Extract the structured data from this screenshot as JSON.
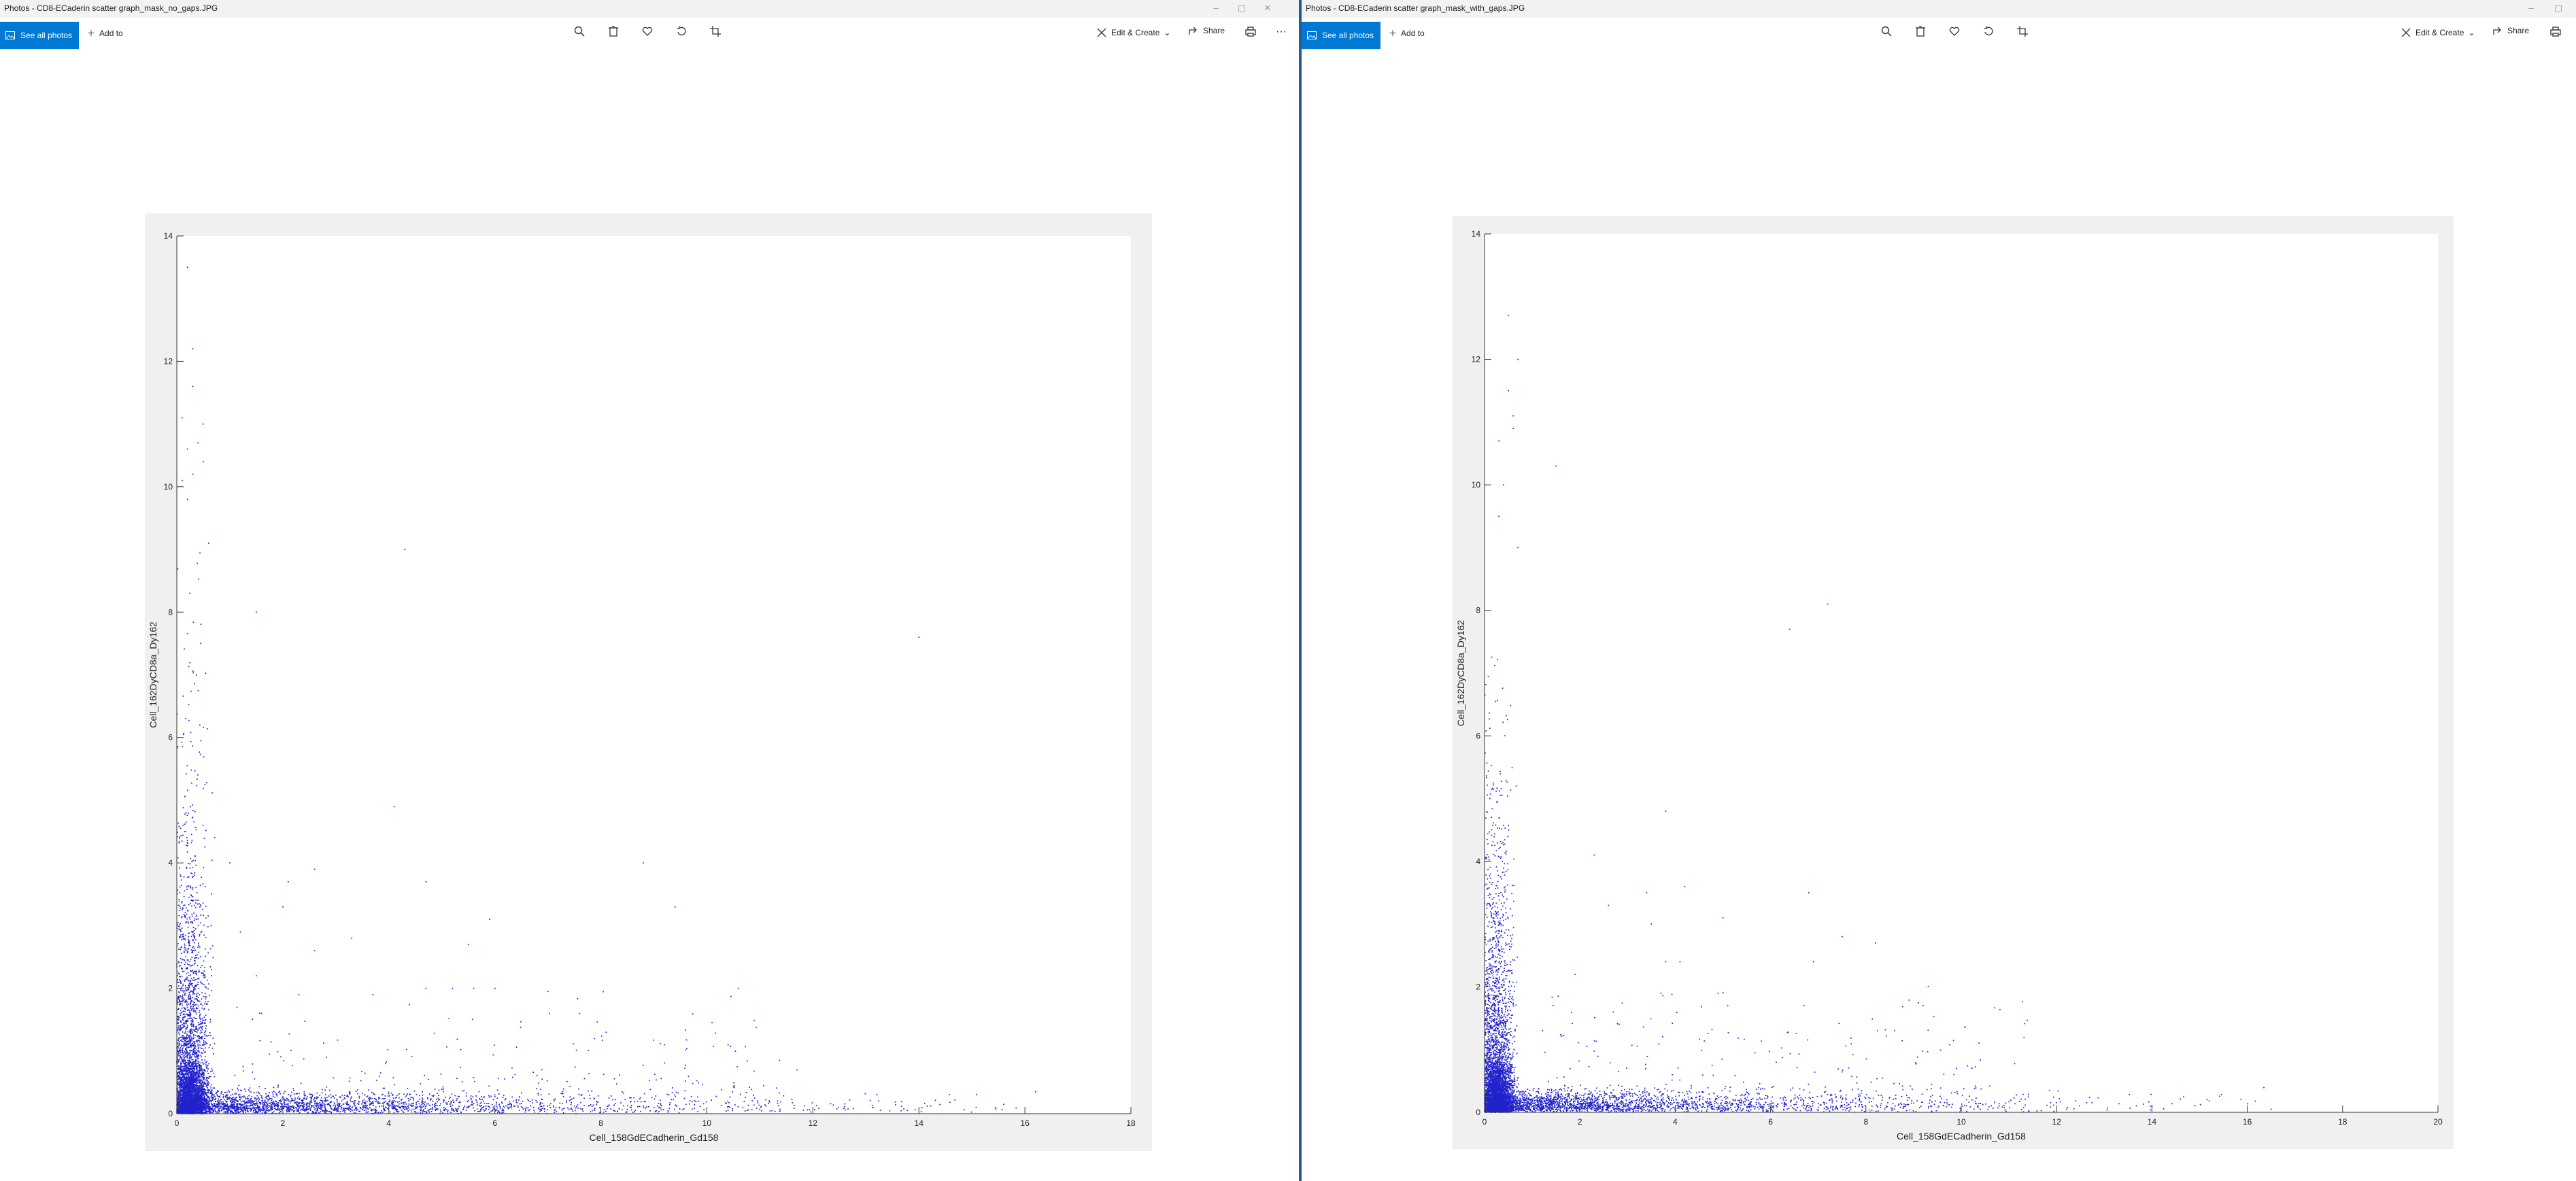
{
  "windows": [
    {
      "title": "Photos - CD8-ECaderin scatter graph_mask_no_gaps.JPG",
      "see_all_label": "See all photos",
      "add_to_label": "Add to",
      "edit_create_label": "Edit & Create",
      "share_label": "Share",
      "more_label": "···",
      "icons": [
        "zoom-icon",
        "delete-icon",
        "heart-icon",
        "rotate-icon",
        "crop-icon"
      ]
    },
    {
      "title": "Photos - CD8-ECaderin scatter graph_mask_with_gaps.JPG",
      "see_all_label": "See all photos",
      "add_to_label": "Add to",
      "edit_create_label": "Edit & Create",
      "share_label": "Share",
      "icons": [
        "zoom-icon",
        "delete-icon",
        "heart-icon",
        "rotate-icon",
        "crop-icon"
      ]
    }
  ],
  "colors": {
    "accent": "#0078d4",
    "points": "#2222cc",
    "figure_bg": "#f0f0f0"
  },
  "chart_data": [
    {
      "type": "scatter",
      "xlabel": "Cell_158GdECadherin_Gd158",
      "ylabel": "Cell_162DyCD8a_Dy162",
      "xlim": [
        0,
        18
      ],
      "ylim": [
        0,
        14
      ],
      "xticks": [
        0,
        2,
        4,
        6,
        8,
        10,
        12,
        14,
        16,
        18
      ],
      "yticks": [
        0,
        2,
        4,
        6,
        8,
        10,
        12,
        14
      ],
      "color": "#2222cc",
      "notable_points": [
        [
          0.2,
          13.5
        ],
        [
          0.3,
          12.2
        ],
        [
          0.3,
          11.6
        ],
        [
          0.1,
          11.1
        ],
        [
          0.5,
          11
        ],
        [
          0.4,
          10.7
        ],
        [
          0.2,
          10.6
        ],
        [
          0.5,
          10.4
        ],
        [
          0.3,
          10.2
        ],
        [
          0.1,
          10.1
        ],
        [
          0.2,
          9.8
        ],
        [
          0.6,
          9.1
        ],
        [
          4.3,
          9
        ],
        [
          1.5,
          8
        ],
        [
          14,
          7.6
        ],
        [
          4.1,
          4.9
        ],
        [
          1,
          4
        ],
        [
          8.8,
          4
        ],
        [
          2.6,
          3.9
        ],
        [
          4.7,
          3.7
        ],
        [
          2.1,
          3.7
        ],
        [
          2,
          3.3
        ],
        [
          9.4,
          3.3
        ],
        [
          5.9,
          3.1
        ],
        [
          1.2,
          2.9
        ],
        [
          3.3,
          2.8
        ],
        [
          5.5,
          2.7
        ],
        [
          2.6,
          2.6
        ],
        [
          1.5,
          2.2
        ],
        [
          4.7,
          2
        ],
        [
          5.2,
          2
        ],
        [
          5.6,
          2
        ],
        [
          6,
          2
        ],
        [
          7,
          1.95
        ],
        [
          10.6,
          2
        ],
        [
          3.7,
          1.9
        ],
        [
          2.3,
          1.9
        ],
        [
          7.6,
          1.6
        ],
        [
          1.6,
          1.6
        ],
        [
          8.1,
          1.3
        ],
        [
          9.2,
          1.1
        ],
        [
          10.4,
          1.1
        ],
        [
          11.7,
          0.7
        ],
        [
          16.2,
          0.35
        ],
        [
          15.6,
          0.15
        ]
      ],
      "cloud": {
        "x_range": [
          0,
          16
        ],
        "y_range": [
          0,
          9
        ],
        "description_only": false
      }
    },
    {
      "type": "scatter",
      "xlabel": "Cell_158GdECadherin_Gd158",
      "ylabel": "Cell_162DyCD8a_Dy162",
      "xlim": [
        0,
        20
      ],
      "ylim": [
        0,
        14
      ],
      "xticks": [
        0,
        2,
        4,
        6,
        8,
        10,
        12,
        14,
        16,
        18,
        20
      ],
      "yticks": [
        0,
        2,
        4,
        6,
        8,
        10,
        12,
        14
      ],
      "color": "#2222cc",
      "notable_points": [
        [
          0.5,
          12.7
        ],
        [
          0.7,
          12
        ],
        [
          0.5,
          11.5
        ],
        [
          0.6,
          11.1
        ],
        [
          0.3,
          10.7
        ],
        [
          0.6,
          10.9
        ],
        [
          0.4,
          10
        ],
        [
          1.5,
          10.3
        ],
        [
          0.3,
          9.5
        ],
        [
          0.7,
          9
        ],
        [
          7.2,
          8.1
        ],
        [
          6.4,
          7.7
        ],
        [
          3.8,
          4.8
        ],
        [
          2.3,
          4.1
        ],
        [
          4.2,
          3.6
        ],
        [
          6.8,
          3.5
        ],
        [
          3.4,
          3.5
        ],
        [
          2.6,
          3.3
        ],
        [
          5,
          3.1
        ],
        [
          3.5,
          3
        ],
        [
          7.5,
          2.8
        ],
        [
          8.2,
          2.7
        ],
        [
          3.8,
          2.4
        ],
        [
          6.9,
          2.4
        ],
        [
          4.1,
          2.4
        ],
        [
          1.9,
          2.2
        ],
        [
          3.7,
          1.9
        ],
        [
          4.9,
          1.9
        ],
        [
          5.1,
          1.7
        ],
        [
          2.7,
          1.6
        ],
        [
          9.2,
          1.7
        ],
        [
          6.7,
          1.7
        ],
        [
          8.6,
          1.3
        ],
        [
          9.9,
          0.7
        ],
        [
          14,
          0.1
        ],
        [
          16.5,
          0.05
        ]
      ],
      "cloud": {
        "x_range": [
          0,
          17
        ],
        "y_range": [
          0,
          8.5
        ],
        "description_only": false
      }
    }
  ]
}
